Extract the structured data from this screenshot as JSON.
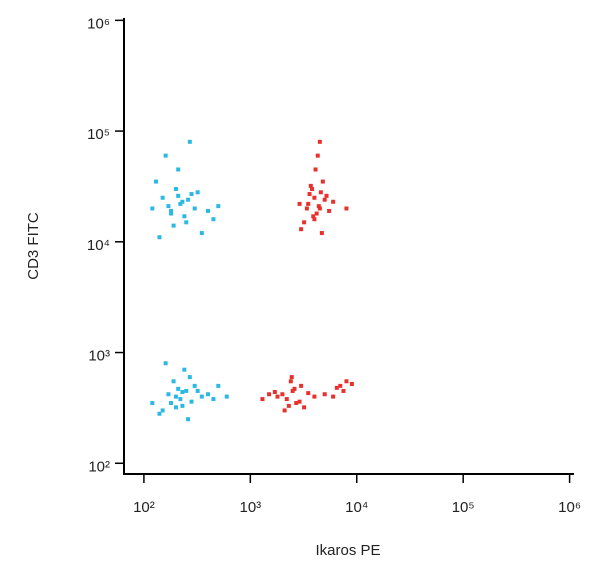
{
  "chart_data": {
    "type": "scatter",
    "xlabel": "Ikaros PE",
    "ylabel": "CD3 FITC",
    "xscale": "log",
    "yscale": "log",
    "xlim": [
      65,
      1100000
    ],
    "ylim": [
      80,
      1050000
    ],
    "xticks": [
      {
        "value": 100,
        "label": "10²"
      },
      {
        "value": 1000,
        "label": "10³"
      },
      {
        "value": 10000,
        "label": "10⁴"
      },
      {
        "value": 100000,
        "label": "10⁵"
      },
      {
        "value": 1000000,
        "label": "10⁶"
      }
    ],
    "yticks": [
      {
        "value": 100,
        "label": "10²"
      },
      {
        "value": 1000,
        "label": "10³"
      },
      {
        "value": 10000,
        "label": "10⁴"
      },
      {
        "value": 100000,
        "label": "10⁵"
      },
      {
        "value": 1000000,
        "label": "10⁶"
      }
    ],
    "series": [
      {
        "color": "#2bb8e3",
        "x": [
          120,
          150,
          180,
          200,
          220,
          250,
          280,
          300,
          350,
          400,
          130,
          170,
          210,
          240,
          260,
          320,
          450,
          160,
          190,
          230,
          270,
          140,
          500,
          210,
          180,
          200,
          250,
          180,
          300,
          220,
          150,
          400,
          270,
          230,
          190,
          350,
          120,
          260,
          210,
          500,
          170,
          280,
          240,
          320,
          140,
          450,
          200,
          600,
          160,
          230
        ],
        "values": [
          20000,
          25000,
          18000,
          30000,
          22000,
          15000,
          27000,
          20000,
          12000,
          19000,
          35000,
          21000,
          45000,
          17000,
          24000,
          28000,
          16000,
          60000,
          14000,
          23000,
          80000,
          11000,
          21000,
          26000,
          19000,
          400,
          450,
          350,
          500,
          380,
          300,
          420,
          600,
          330,
          550,
          400,
          350,
          250,
          470,
          500,
          420,
          360,
          700,
          450,
          280,
          380,
          320,
          400,
          800,
          440
        ]
      },
      {
        "color": "#e8302c",
        "x": [
          3500,
          4000,
          4500,
          3800,
          4200,
          5000,
          3200,
          4800,
          3600,
          4400,
          5500,
          3000,
          4100,
          3900,
          4600,
          6000,
          3400,
          4300,
          4700,
          3700,
          5200,
          4000,
          2900,
          4500,
          8000,
          2000,
          2500,
          2200,
          3000,
          1800,
          2700,
          1500,
          3500,
          2400,
          2100,
          4000,
          1300,
          2600,
          2300,
          5000,
          6500,
          7000,
          8000,
          7500,
          6000,
          2900,
          1700,
          3200,
          9000,
          2450
        ],
        "values": [
          22000,
          25000,
          20000,
          30000,
          18000,
          24000,
          15000,
          35000,
          27000,
          21000,
          19000,
          13000,
          45000,
          17000,
          28000,
          23000,
          20000,
          60000,
          12000,
          32000,
          26000,
          16000,
          22000,
          80000,
          20000,
          420,
          450,
          380,
          500,
          400,
          350,
          420,
          430,
          550,
          300,
          400,
          380,
          470,
          330,
          420,
          480,
          500,
          550,
          450,
          400,
          360,
          440,
          320,
          520,
          600
        ]
      }
    ]
  }
}
